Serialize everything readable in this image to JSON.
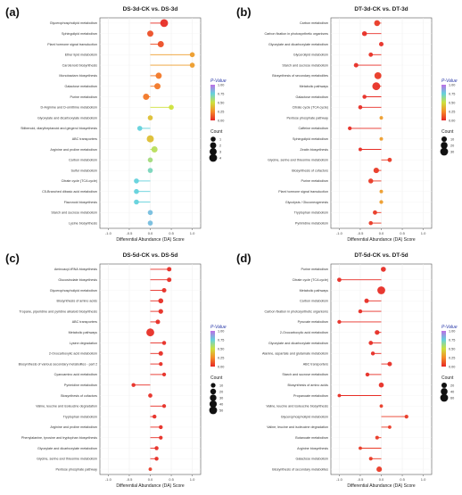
{
  "chart_data": [
    {
      "panel_label": "(a)",
      "title": "DS-3d-CK vs. DS-3d",
      "type": "scatter",
      "xlabel": "Differential Abundance (DA) Score",
      "xticks": [
        -1.0,
        -0.5,
        0.0,
        0.5,
        1.0
      ],
      "xlim": [
        -1.2,
        1.2
      ],
      "categories": [
        "Glycerophospholipid metabolism",
        "Sphingolipid metabolism",
        "Plant hormone signal transduction",
        "Ether lipid metabolism",
        "Carotenoid biosynthesis",
        "Monobactam biosynthesis",
        "Galactose metabolism",
        "Purine metabolism",
        "D-Arginine and D-ornithine metabolism",
        "Glyoxylate and dicarboxylate metabolism",
        "Stilbenoid, diarylheptanoid and gingerol biosynthesis",
        "ABC transporters",
        "Arginine and proline metabolism",
        "Carbon metabolism",
        "Sulfur metabolism",
        "Citrate cycle (TCA cycle)",
        "C5-Branched dibasic acid metabolism",
        "Flavonoid biosynthesis",
        "Starch and sucrose metabolism",
        "Lysine biosynthesis"
      ],
      "values": [
        0.33,
        0.0,
        0.25,
        1.0,
        1.0,
        0.2,
        0.17,
        -0.1,
        0.5,
        0.0,
        -0.25,
        0.0,
        0.1,
        0.0,
        0.0,
        -0.33,
        -0.33,
        -0.33,
        0.0,
        0.0
      ],
      "counts": [
        4,
        2,
        2,
        1,
        1,
        2,
        2,
        2,
        1,
        1,
        1,
        3,
        2,
        1,
        1,
        1,
        1,
        1,
        1,
        1
      ],
      "pvalues": [
        0.02,
        0.1,
        0.1,
        0.3,
        0.3,
        0.2,
        0.2,
        0.2,
        0.5,
        0.4,
        0.75,
        0.4,
        0.55,
        0.6,
        0.7,
        0.75,
        0.75,
        0.75,
        0.8,
        0.8
      ],
      "legend": {
        "pvalue_title": "P-Value",
        "pvalue_ticks": [
          "1.00",
          "0.75",
          "0.50",
          "0.25",
          "0.00"
        ],
        "count_title": "Count",
        "count_values": [
          "1",
          "2",
          "3",
          "4"
        ]
      }
    },
    {
      "panel_label": "(b)",
      "title": "DT-3d-CK vs. DT-3d",
      "type": "scatter",
      "xlabel": "Differential Abundance (DA) Score",
      "xticks": [
        -1.0,
        -0.5,
        0.0,
        0.5,
        1.0
      ],
      "xlim": [
        -1.2,
        1.2
      ],
      "categories": [
        "Carbon metabolism",
        "Carbon fixation in photosynthetic organisms",
        "Glyoxylate and dicarboxylate metabolism",
        "Glycerolipid metabolism",
        "Starch and sucrose metabolism",
        "Biosynthesis of secondary metabolites",
        "Metabolic pathways",
        "Galactose metabolism",
        "Citrate cycle (TCA cycle)",
        "Pentose phosphate pathway",
        "Caffeine metabolism",
        "Sphingolipid metabolism",
        "Zeatin biosynthesis",
        "Glycine, serine and threonine metabolism",
        "Biosynthesis of cofactors",
        "Purine metabolism",
        "Plant hormone signal transduction",
        "Glycolysis / Gluconeogenesis",
        "Tryptophan metabolism",
        "Pyrimidine metabolism"
      ],
      "values": [
        -0.1,
        -0.4,
        0.0,
        -0.25,
        -0.6,
        -0.08,
        -0.12,
        -0.4,
        -0.5,
        0.0,
        -0.75,
        0.0,
        -0.5,
        0.2,
        -0.12,
        -0.25,
        0.0,
        0.0,
        -0.15,
        -0.25
      ],
      "counts": [
        15,
        8,
        6,
        5,
        6,
        25,
        35,
        4,
        4,
        2,
        3,
        2,
        2,
        5,
        12,
        8,
        2,
        3,
        5,
        4
      ],
      "pvalues": [
        0.05,
        0.02,
        0.02,
        0.03,
        0.02,
        0.05,
        0.03,
        0.02,
        0.02,
        0.3,
        0.02,
        0.3,
        0.02,
        0.05,
        0.05,
        0.05,
        0.3,
        0.3,
        0.05,
        0.05
      ],
      "legend": {
        "pvalue_title": "P-Value",
        "pvalue_ticks": [
          "1.00",
          "0.75",
          "0.50",
          "0.25",
          "0.00"
        ],
        "count_title": "Count",
        "count_values": [
          "10",
          "20",
          "30"
        ]
      }
    },
    {
      "panel_label": "(c)",
      "title": "DS-5d-CK vs. DS-5d",
      "type": "scatter",
      "xlabel": "Differential Abundance (DA) Score",
      "xticks": [
        -1.0,
        -0.5,
        0.0,
        0.5,
        1.0
      ],
      "xlim": [
        -1.2,
        1.2
      ],
      "categories": [
        "Aminoacyl-tRNA biosynthesis",
        "Glucosinolate biosynthesis",
        "Glycerophospholipid metabolism",
        "Biosynthesis of amino acids",
        "Tropane, piperidine and pyridine alkaloid biosynthesis",
        "ABC transporters",
        "Metabolic pathways",
        "Lysine degradation",
        "2-Oxocarboxylic acid metabolism",
        "Biosynthesis of various secondary metabolites - part 2",
        "Cyanoamino acid metabolism",
        "Pyrimidine metabolism",
        "Biosynthesis of cofactors",
        "Valine, leucine and isoleucine degradation",
        "Tryptophan metabolism",
        "Arginine and proline metabolism",
        "Phenylalanine, tyrosine and tryptophan biosynthesis",
        "Glyoxylate and dicarboxylate metabolism",
        "Glycine, serine and threonine metabolism",
        "Pentose phosphate pathway"
      ],
      "values": [
        0.45,
        0.45,
        0.33,
        0.25,
        0.25,
        0.18,
        0.0,
        0.33,
        0.25,
        0.25,
        0.33,
        -0.4,
        0.0,
        0.33,
        0.1,
        0.25,
        0.25,
        0.15,
        0.15,
        0.0
      ],
      "counts": [
        10,
        10,
        10,
        15,
        12,
        10,
        60,
        6,
        10,
        5,
        5,
        6,
        8,
        5,
        6,
        6,
        5,
        6,
        6,
        3
      ],
      "pvalues": [
        0.02,
        0.02,
        0.02,
        0.02,
        0.02,
        0.02,
        0.02,
        0.02,
        0.02,
        0.02,
        0.02,
        0.02,
        0.02,
        0.02,
        0.02,
        0.02,
        0.02,
        0.02,
        0.02,
        0.05
      ],
      "legend": {
        "pvalue_title": "P-Value",
        "pvalue_ticks": [
          "1.00",
          "0.75",
          "0.50",
          "0.25",
          "0.00"
        ],
        "count_title": "Count",
        "count_values": [
          "10",
          "20",
          "30",
          "40",
          "50"
        ]
      }
    },
    {
      "panel_label": "(d)",
      "title": "DT-5d-CK vs. DT-5d",
      "type": "scatter",
      "xlabel": "Differential Abundance (DA) Score",
      "xticks": [
        -1.0,
        -0.5,
        0.0,
        0.5,
        1.0
      ],
      "xlim": [
        -1.2,
        1.2
      ],
      "categories": [
        "Purine metabolism",
        "Citrate cycle (TCA cycle)",
        "Metabolic pathways",
        "Carbon metabolism",
        "Carbon fixation in photosynthetic organisms",
        "Pyruvate metabolism",
        "2-Oxocarboxylic acid metabolism",
        "Glyoxylate and dicarboxylate metabolism",
        "Alanine, aspartate and glutamate metabolism",
        "ABC transporters",
        "Starch and sucrose metabolism",
        "Biosynthesis of amino acids",
        "Propanoate metabolism",
        "Valine, leucine and isoleucine biosynthesis",
        "Glycerophospholipid metabolism",
        "Valine, leucine and isoleucine degradation",
        "Butanoate metabolism",
        "Arginine biosynthesis",
        "Galactose metabolism",
        "Biosynthesis of secondary metabolites"
      ],
      "values": [
        0.05,
        -1.0,
        0.0,
        -0.35,
        -0.5,
        -1.0,
        -0.1,
        -0.25,
        -0.2,
        0.2,
        -0.33,
        0.0,
        -1.0,
        0.0,
        0.6,
        0.2,
        -0.1,
        -0.5,
        -0.25,
        -0.05
      ],
      "counts": [
        15,
        8,
        60,
        10,
        6,
        5,
        12,
        8,
        6,
        10,
        6,
        15,
        3,
        3,
        5,
        3,
        4,
        3,
        4,
        20
      ],
      "pvalues": [
        0.02,
        0.02,
        0.02,
        0.02,
        0.02,
        0.02,
        0.02,
        0.02,
        0.02,
        0.02,
        0.02,
        0.02,
        0.02,
        0.05,
        0.05,
        0.05,
        0.05,
        0.05,
        0.05,
        0.05
      ],
      "legend": {
        "pvalue_title": "P-Value",
        "pvalue_ticks": [
          "1.00",
          "0.75",
          "0.50",
          "0.25",
          "0.00"
        ],
        "count_title": "Count",
        "count_values": [
          "20",
          "40",
          "60"
        ]
      }
    }
  ]
}
